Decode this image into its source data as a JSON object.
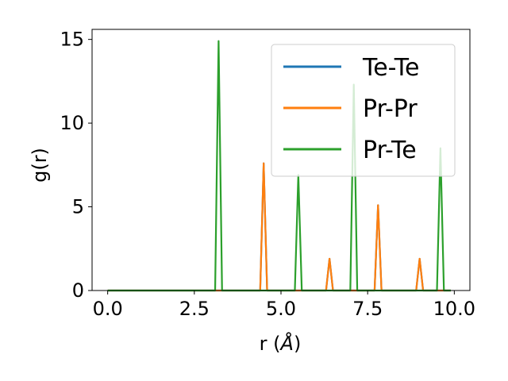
{
  "chart_data": {
    "type": "line",
    "xlabel": "r (",
    "xlabel_unit": "Å",
    "xlabel_close": ")",
    "ylabel": "g(r)",
    "xlim": [
      -0.45,
      10.45
    ],
    "ylim": [
      0,
      15.6
    ],
    "xticks": [
      0.0,
      2.5,
      5.0,
      7.5,
      10.0
    ],
    "xtick_labels": [
      "0.0",
      "2.5",
      "5.0",
      "7.5",
      "10.0"
    ],
    "yticks": [
      0,
      5,
      10,
      15
    ],
    "ytick_labels": [
      "0",
      "5",
      "10",
      "15"
    ],
    "grid": false,
    "legend_position": "top-right",
    "x_start": 0.0,
    "x_end": 9.9,
    "series": [
      {
        "name": "Te-Te",
        "color": "#1f77b4",
        "peaks": [
          [
            4.5,
            7.6
          ],
          [
            6.4,
            1.9
          ],
          [
            7.8,
            5.1
          ],
          [
            9.0,
            1.9
          ]
        ]
      },
      {
        "name": "Pr-Pr",
        "color": "#ff7f0e",
        "peaks": [
          [
            4.5,
            7.6
          ],
          [
            6.4,
            1.9
          ],
          [
            7.8,
            5.1
          ],
          [
            9.0,
            1.9
          ]
        ]
      },
      {
        "name": "Pr-Te",
        "color": "#2ca02c",
        "peaks": [
          [
            3.2,
            14.9
          ],
          [
            5.5,
            6.9
          ],
          [
            7.1,
            12.3
          ],
          [
            9.6,
            8.5
          ]
        ]
      }
    ]
  }
}
